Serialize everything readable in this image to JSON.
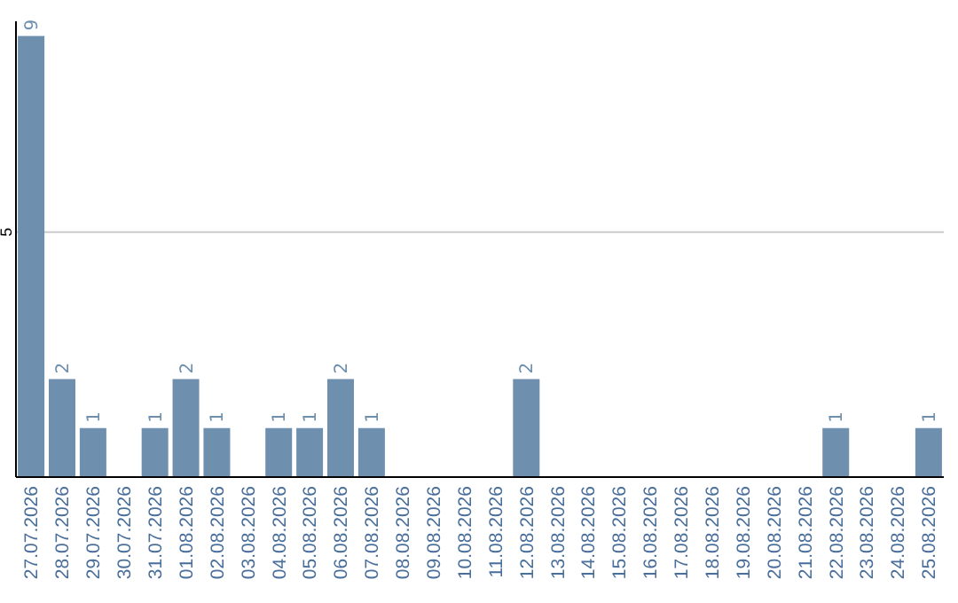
{
  "chart_data": {
    "type": "bar",
    "categories": [
      "27.07.2026",
      "28.07.2026",
      "29.07.2026",
      "30.07.2026",
      "31.07.2026",
      "01.08.2026",
      "02.08.2026",
      "03.08.2026",
      "04.08.2026",
      "05.08.2026",
      "06.08.2026",
      "07.08.2026",
      "08.08.2026",
      "09.08.2026",
      "10.08.2026",
      "11.08.2026",
      "12.08.2026",
      "13.08.2026",
      "14.08.2026",
      "15.08.2026",
      "16.08.2026",
      "17.08.2026",
      "18.08.2026",
      "19.08.2026",
      "20.08.2026",
      "21.08.2026",
      "22.08.2026",
      "23.08.2026",
      "24.08.2026",
      "25.08.2026"
    ],
    "values": [
      9,
      2,
      1,
      0,
      1,
      2,
      1,
      0,
      1,
      1,
      2,
      1,
      0,
      0,
      0,
      0,
      2,
      0,
      0,
      0,
      0,
      0,
      0,
      0,
      0,
      0,
      1,
      0,
      0,
      1
    ],
    "value_labels": [
      "9",
      "2",
      "1",
      null,
      "1",
      "2",
      "1",
      null,
      "1",
      "1",
      "2",
      "1",
      null,
      null,
      null,
      null,
      "2",
      null,
      null,
      null,
      null,
      null,
      null,
      null,
      null,
      null,
      "1",
      null,
      null,
      "1"
    ],
    "color": "#6f8fae",
    "ylim": [
      0,
      9.3
    ],
    "yticks": [
      5
    ],
    "grid": "y"
  }
}
